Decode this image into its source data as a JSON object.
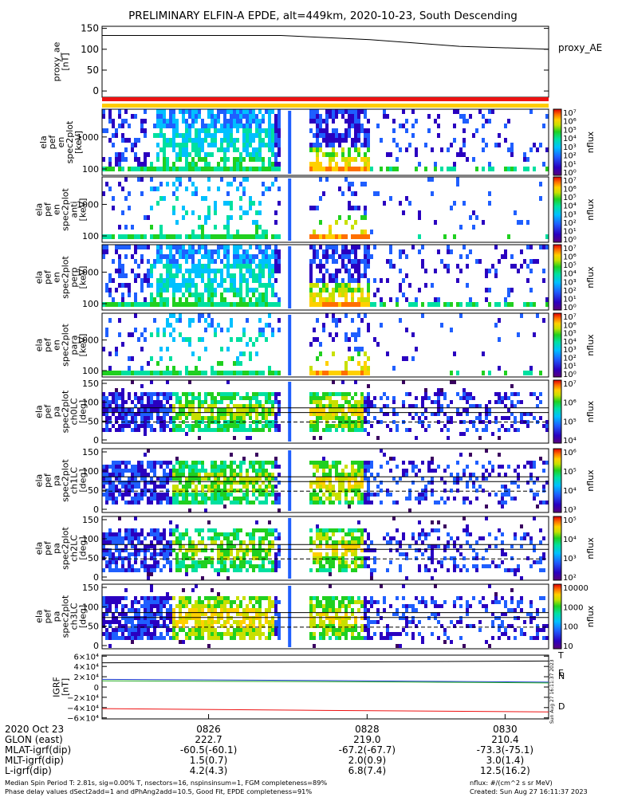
{
  "title": "PRELIMINARY ELFIN-A EPDE, alt=449km, 2020-10-23, South Descending",
  "colors": {
    "red": "#ee1111",
    "yellow": "#ffcc00",
    "black": "#000000",
    "blue": "#1f3fd0",
    "green": "#22aa22"
  },
  "chart_data": {
    "type": "heatmap",
    "panels": [
      {
        "id": "proxy_ae",
        "type": "line",
        "ylabel": [
          "proxy_ae",
          "[nT]"
        ],
        "yticks": [
          "150",
          "100",
          "50",
          "0"
        ],
        "ylim": [
          -15,
          155
        ],
        "legend": "proxy_AE",
        "series": [
          {
            "name": "proxy_AE",
            "x": [
              0,
              0.4,
              0.6,
              0.8,
              1.0
            ],
            "values": [
              133,
              133,
              123,
              107,
              100
            ]
          }
        ]
      },
      {
        "id": "en_para",
        "ylabel": [
          "ela",
          "pef",
          "en",
          "spec2plot",
          "[keV]"
        ],
        "yticks": [
          "1000",
          "100"
        ],
        "cb_ticks": [
          "10⁷",
          "10⁶",
          "10⁵",
          "10⁴",
          "10³",
          "10²",
          "10¹",
          "10⁰"
        ],
        "cb_label": "nflux"
      },
      {
        "id": "en_anti",
        "ylabel": [
          "ela",
          "pef",
          "en",
          "spec2plot",
          "anti",
          "[keV]"
        ],
        "yticks": [
          "1000",
          "100"
        ],
        "cb_ticks": [
          "10⁷",
          "10⁶",
          "10⁵",
          "10⁴",
          "10³",
          "10²",
          "10¹",
          "10⁰"
        ],
        "cb_label": "nflux"
      },
      {
        "id": "en_perp",
        "ylabel": [
          "ela",
          "pef",
          "en",
          "spec2plot",
          "perp",
          "[keV]"
        ],
        "yticks": [
          "1000",
          "100"
        ],
        "cb_ticks": [
          "10⁷",
          "10⁶",
          "10⁵",
          "10⁴",
          "10³",
          "10²",
          "10¹",
          "10⁰"
        ],
        "cb_label": "nflux"
      },
      {
        "id": "en_para2",
        "ylabel": [
          "ela",
          "pef",
          "en",
          "spec2plot",
          "para",
          "[keV]"
        ],
        "yticks": [
          "1000",
          "100"
        ],
        "cb_ticks": [
          "10⁷",
          "10⁶",
          "10⁵",
          "10⁴",
          "10³",
          "10²",
          "10¹",
          "10⁰"
        ],
        "cb_label": "nflux"
      },
      {
        "id": "ch0LC",
        "ylabel": [
          "ela",
          "pef",
          "pa",
          "spec2plot",
          "ch0LC",
          "[deg]"
        ],
        "yticks": [
          "150",
          "100",
          "50",
          "0"
        ],
        "cb_ticks": [
          "10⁷",
          "10⁶",
          "10⁵",
          "10⁴"
        ],
        "cb_label": "nflux"
      },
      {
        "id": "ch1LC",
        "ylabel": [
          "ela",
          "pef",
          "pa",
          "spec2plot",
          "ch1LC",
          "[deg]"
        ],
        "yticks": [
          "150",
          "100",
          "50",
          "0"
        ],
        "cb_ticks": [
          "10⁶",
          "10⁵",
          "10⁴",
          "10³"
        ],
        "cb_label": "nflux"
      },
      {
        "id": "ch2LC",
        "ylabel": [
          "ela",
          "pef",
          "pa",
          "spec2plot",
          "ch2LC",
          "[deg]"
        ],
        "yticks": [
          "150",
          "100",
          "50",
          "0"
        ],
        "cb_ticks": [
          "10⁵",
          "10⁴",
          "10³",
          "10²"
        ],
        "cb_label": "nflux"
      },
      {
        "id": "ch3LC",
        "ylabel": [
          "ela",
          "pef",
          "pa",
          "spec2plot",
          "ch3LC",
          "[deg]"
        ],
        "yticks": [
          "150",
          "100",
          "50",
          "0"
        ],
        "cb_ticks": [
          "10000",
          "1000",
          "100",
          "10"
        ],
        "cb_label": "nflux"
      },
      {
        "id": "igrf",
        "type": "line",
        "ylabel": [
          "IGRF",
          "[nT]"
        ],
        "yticks": [
          "6×10⁴",
          "4×10⁴",
          "2×10⁴",
          "0",
          "−2×10⁴",
          "−4×10⁴",
          "−6×10⁴"
        ],
        "ylim": [
          -62000,
          62000
        ],
        "series": [
          {
            "name": "T",
            "color": "#000000",
            "x": [
              0,
              0.5,
              1
            ],
            "values": [
              47000,
              48500,
              50500
            ]
          },
          {
            "name": "N",
            "color": "#1f3fd0",
            "x": [
              0,
              0.5,
              1
            ],
            "values": [
              15000,
              12500,
              9500
            ]
          },
          {
            "name": "E",
            "color": "#22aa22",
            "x": [
              0,
              0.5,
              1
            ],
            "values": [
              12000,
              10500,
              8000
            ]
          },
          {
            "name": "D",
            "color": "#ee1111",
            "x": [
              0,
              0.5,
              1
            ],
            "values": [
              -42000,
              -45500,
              -48500
            ]
          }
        ],
        "labels": [
          "T",
          "E",
          "N",
          "D"
        ]
      }
    ],
    "x_ticks": [
      "0826",
      "0828",
      "0830"
    ]
  },
  "side_stamp": "Sun Aug 27 16:11:37 2023",
  "footer": {
    "rows": [
      {
        "label": "2020 Oct 23",
        "v": [
          "0826",
          "0828",
          "0830"
        ]
      },
      {
        "label": "GLON (east)",
        "v": [
          "222.7",
          "219.0",
          "210.4"
        ]
      },
      {
        "label": "MLAT-igrf(dip)",
        "v": [
          "-60.5(-60.1)",
          "-67.2(-67.7)",
          "-73.3(-75.1)"
        ]
      },
      {
        "label": "MLT-igrf(dip)",
        "v": [
          "1.5(0.7)",
          "2.0(0.9)",
          "3.0(1.4)"
        ]
      },
      {
        "label": "L-igrf(dip)",
        "v": [
          "4.2(4.3)",
          "6.8(7.4)",
          "12.5(16.2)"
        ]
      }
    ],
    "note1": "Median Spin Period T: 2.81s, sig=0.00% T, nsectors=16, nspinsinsum=1, FGM completeness=89%",
    "note2": "Phase delay values dSect2add=1 and dPhAng2add=10.5, Good Fit, EPDE completeness=91%",
    "unit": "nflux: #/(cm^2 s sr MeV)",
    "created": "Created: Sun Aug 27 16:11:37 2023"
  }
}
